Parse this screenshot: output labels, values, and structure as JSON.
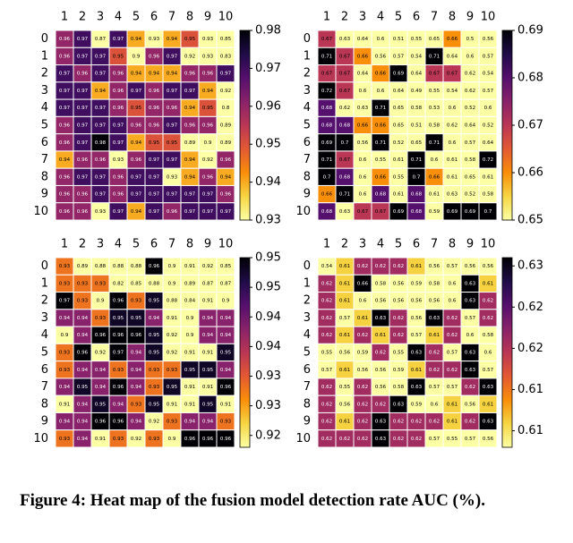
{
  "chart_data": [
    {
      "type": "heatmap",
      "x_labels": [
        1,
        2,
        3,
        4,
        5,
        6,
        7,
        8,
        9,
        10
      ],
      "y_labels": [
        0,
        1,
        2,
        3,
        4,
        5,
        6,
        7,
        8,
        9,
        10
      ],
      "zlim": [
        0.93,
        0.98
      ],
      "zticks": [
        0.93,
        0.94,
        0.95,
        0.96,
        0.97,
        0.98
      ],
      "values": [
        [
          0.96,
          0.97,
          0.87,
          0.97,
          0.94,
          0.93,
          0.94,
          0.95,
          0.93,
          0.85
        ],
        [
          0.96,
          0.97,
          0.97,
          0.95,
          0.9,
          0.96,
          0.97,
          0.92,
          0.93,
          0.83
        ],
        [
          0.97,
          0.96,
          0.97,
          0.96,
          0.94,
          0.94,
          0.94,
          0.96,
          0.96,
          0.97
        ],
        [
          0.97,
          0.97,
          0.94,
          0.96,
          0.97,
          0.96,
          0.97,
          0.97,
          0.94,
          0.92
        ],
        [
          0.97,
          0.97,
          0.97,
          0.96,
          0.95,
          0.96,
          0.96,
          0.94,
          0.95,
          0.8
        ],
        [
          0.96,
          0.97,
          0.97,
          0.97,
          0.96,
          0.96,
          0.97,
          0.96,
          0.96,
          0.89
        ],
        [
          0.96,
          0.97,
          0.98,
          0.97,
          0.94,
          0.95,
          0.95,
          0.89,
          0.9,
          0.89
        ],
        [
          0.94,
          0.96,
          0.96,
          0.93,
          0.96,
          0.97,
          0.97,
          0.94,
          0.92,
          0.96
        ],
        [
          0.96,
          0.97,
          0.97,
          0.96,
          0.97,
          0.97,
          0.93,
          0.94,
          0.96,
          0.94
        ],
        [
          0.96,
          0.96,
          0.97,
          0.96,
          0.97,
          0.97,
          0.97,
          0.97,
          0.97,
          0.96
        ],
        [
          0.96,
          0.96,
          0.93,
          0.97,
          0.94,
          0.97,
          0.96,
          0.97,
          0.97,
          0.97
        ]
      ]
    },
    {
      "type": "heatmap",
      "x_labels": [
        1,
        2,
        3,
        4,
        5,
        6,
        7,
        8,
        9,
        10
      ],
      "y_labels": [
        0,
        1,
        2,
        3,
        4,
        5,
        6,
        7,
        8,
        9,
        10
      ],
      "zlim": [
        0.65,
        0.69
      ],
      "zticks": [
        0.65,
        0.66,
        0.67,
        0.68,
        0.69
      ],
      "values": [
        [
          0.67,
          0.63,
          0.64,
          0.6,
          0.51,
          0.55,
          0.65,
          0.66,
          0.5,
          0.56
        ],
        [
          0.71,
          0.67,
          0.66,
          0.56,
          0.57,
          0.54,
          0.71,
          0.64,
          0.6,
          0.57
        ],
        [
          0.67,
          0.67,
          0.64,
          0.66,
          0.69,
          0.64,
          0.67,
          0.67,
          0.62,
          0.54
        ],
        [
          0.72,
          0.67,
          0.6,
          0.6,
          0.64,
          0.49,
          0.55,
          0.54,
          0.62,
          0.57
        ],
        [
          0.68,
          0.62,
          0.63,
          0.71,
          0.65,
          0.58,
          0.53,
          0.6,
          0.52,
          0.6
        ],
        [
          0.68,
          0.68,
          0.66,
          0.66,
          0.65,
          0.51,
          0.58,
          0.62,
          0.64,
          0.52
        ],
        [
          0.69,
          0.7,
          0.56,
          0.71,
          0.52,
          0.65,
          0.71,
          0.6,
          0.57,
          0.64
        ],
        [
          0.71,
          0.67,
          0.6,
          0.55,
          0.61,
          0.71,
          0.6,
          0.61,
          0.58,
          0.72
        ],
        [
          0.7,
          0.68,
          0.6,
          0.66,
          0.55,
          0.7,
          0.66,
          0.61,
          0.65,
          0.61
        ],
        [
          0.66,
          0.71,
          0.6,
          0.68,
          0.61,
          0.68,
          0.61,
          0.63,
          0.52,
          0.58
        ],
        [
          0.68,
          0.63,
          0.67,
          0.67,
          0.69,
          0.68,
          0.59,
          0.69,
          0.69,
          0.7
        ]
      ]
    },
    {
      "type": "heatmap",
      "x_labels": [
        1,
        2,
        3,
        4,
        5,
        6,
        7,
        8,
        9,
        10
      ],
      "y_labels": [
        0,
        1,
        2,
        3,
        4,
        5,
        6,
        7,
        8,
        9,
        10
      ],
      "zlim": [
        0.92,
        0.952
      ],
      "zticks": [
        {
          "value": 0.922,
          "label": "0.92"
        },
        {
          "value": 0.927,
          "label": "0.93"
        },
        {
          "value": 0.932,
          "label": "0.93"
        },
        {
          "value": 0.937,
          "label": "0.94"
        },
        {
          "value": 0.942,
          "label": "0.94"
        },
        {
          "value": 0.947,
          "label": "0.95"
        },
        {
          "value": 0.952,
          "label": "0.95"
        }
      ],
      "values": [
        [
          0.93,
          0.89,
          0.88,
          0.88,
          0.88,
          0.96,
          0.9,
          0.91,
          0.92,
          0.85
        ],
        [
          0.93,
          0.93,
          0.93,
          0.82,
          0.85,
          0.88,
          0.9,
          0.89,
          0.87,
          0.87
        ],
        [
          0.97,
          0.93,
          0.9,
          0.96,
          0.93,
          0.95,
          0.88,
          0.84,
          0.91,
          0.9
        ],
        [
          0.94,
          0.94,
          0.93,
          0.95,
          0.95,
          0.94,
          0.91,
          0.9,
          0.94,
          0.94
        ],
        [
          0.9,
          0.94,
          0.96,
          0.96,
          0.96,
          0.95,
          0.92,
          0.9,
          0.94,
          0.94
        ],
        [
          0.93,
          0.96,
          0.92,
          0.97,
          0.94,
          0.95,
          0.92,
          0.91,
          0.91,
          0.95
        ],
        [
          0.93,
          0.94,
          0.94,
          0.93,
          0.94,
          0.93,
          0.93,
          0.95,
          0.95,
          0.94
        ],
        [
          0.94,
          0.95,
          0.94,
          0.96,
          0.94,
          0.93,
          0.95,
          0.91,
          0.91,
          0.96
        ],
        [
          0.91,
          0.94,
          0.95,
          0.94,
          0.93,
          0.95,
          0.91,
          0.91,
          0.95,
          0.91
        ],
        [
          0.94,
          0.94,
          0.96,
          0.96,
          0.94,
          0.92,
          0.93,
          0.94,
          0.94,
          0.93
        ],
        [
          0.93,
          0.94,
          0.91,
          0.93,
          0.92,
          0.93,
          0.9,
          0.96,
          0.96,
          0.96
        ]
      ]
    },
    {
      "type": "heatmap",
      "x_labels": [
        1,
        2,
        3,
        4,
        5,
        6,
        7,
        8,
        9,
        10
      ],
      "y_labels": [
        0,
        1,
        2,
        3,
        4,
        5,
        6,
        7,
        8,
        9,
        10
      ],
      "zlim": [
        0.607,
        0.63
      ],
      "zticks": [
        {
          "value": 0.609,
          "label": "0.61"
        },
        {
          "value": 0.614,
          "label": "0.61"
        },
        {
          "value": 0.619,
          "label": "0.62"
        },
        {
          "value": 0.624,
          "label": "0.62"
        },
        {
          "value": 0.629,
          "label": "0.63"
        }
      ],
      "values": [
        [
          0.54,
          0.61,
          0.62,
          0.62,
          0.62,
          0.61,
          0.56,
          0.57,
          0.56,
          0.56
        ],
        [
          0.62,
          0.61,
          0.66,
          0.58,
          0.56,
          0.59,
          0.58,
          0.6,
          0.63,
          0.61
        ],
        [
          0.62,
          0.61,
          0.6,
          0.56,
          0.56,
          0.56,
          0.56,
          0.6,
          0.63,
          0.62
        ],
        [
          0.62,
          0.57,
          0.61,
          0.63,
          0.62,
          0.56,
          0.63,
          0.62,
          0.57,
          0.62
        ],
        [
          0.62,
          0.61,
          0.62,
          0.61,
          0.62,
          0.57,
          0.61,
          0.62,
          0.6,
          0.58
        ],
        [
          0.55,
          0.56,
          0.59,
          0.62,
          0.55,
          0.63,
          0.62,
          0.57,
          0.63,
          0.6
        ],
        [
          0.57,
          0.61,
          0.56,
          0.56,
          0.59,
          0.61,
          0.62,
          0.62,
          0.63,
          0.57
        ],
        [
          0.62,
          0.55,
          0.62,
          0.56,
          0.58,
          0.63,
          0.57,
          0.57,
          0.62,
          0.63
        ],
        [
          0.62,
          0.56,
          0.62,
          0.62,
          0.63,
          0.59,
          0.6,
          0.61,
          0.56,
          0.61
        ],
        [
          0.62,
          0.61,
          0.62,
          0.63,
          0.62,
          0.62,
          0.62,
          0.61,
          0.62,
          0.63
        ],
        [
          0.62,
          0.62,
          0.62,
          0.63,
          0.62,
          0.62,
          0.57,
          0.55,
          0.57,
          0.56
        ]
      ]
    }
  ],
  "caption": "Figure 4: Heat map of the fusion model detection rate AUC (%)."
}
